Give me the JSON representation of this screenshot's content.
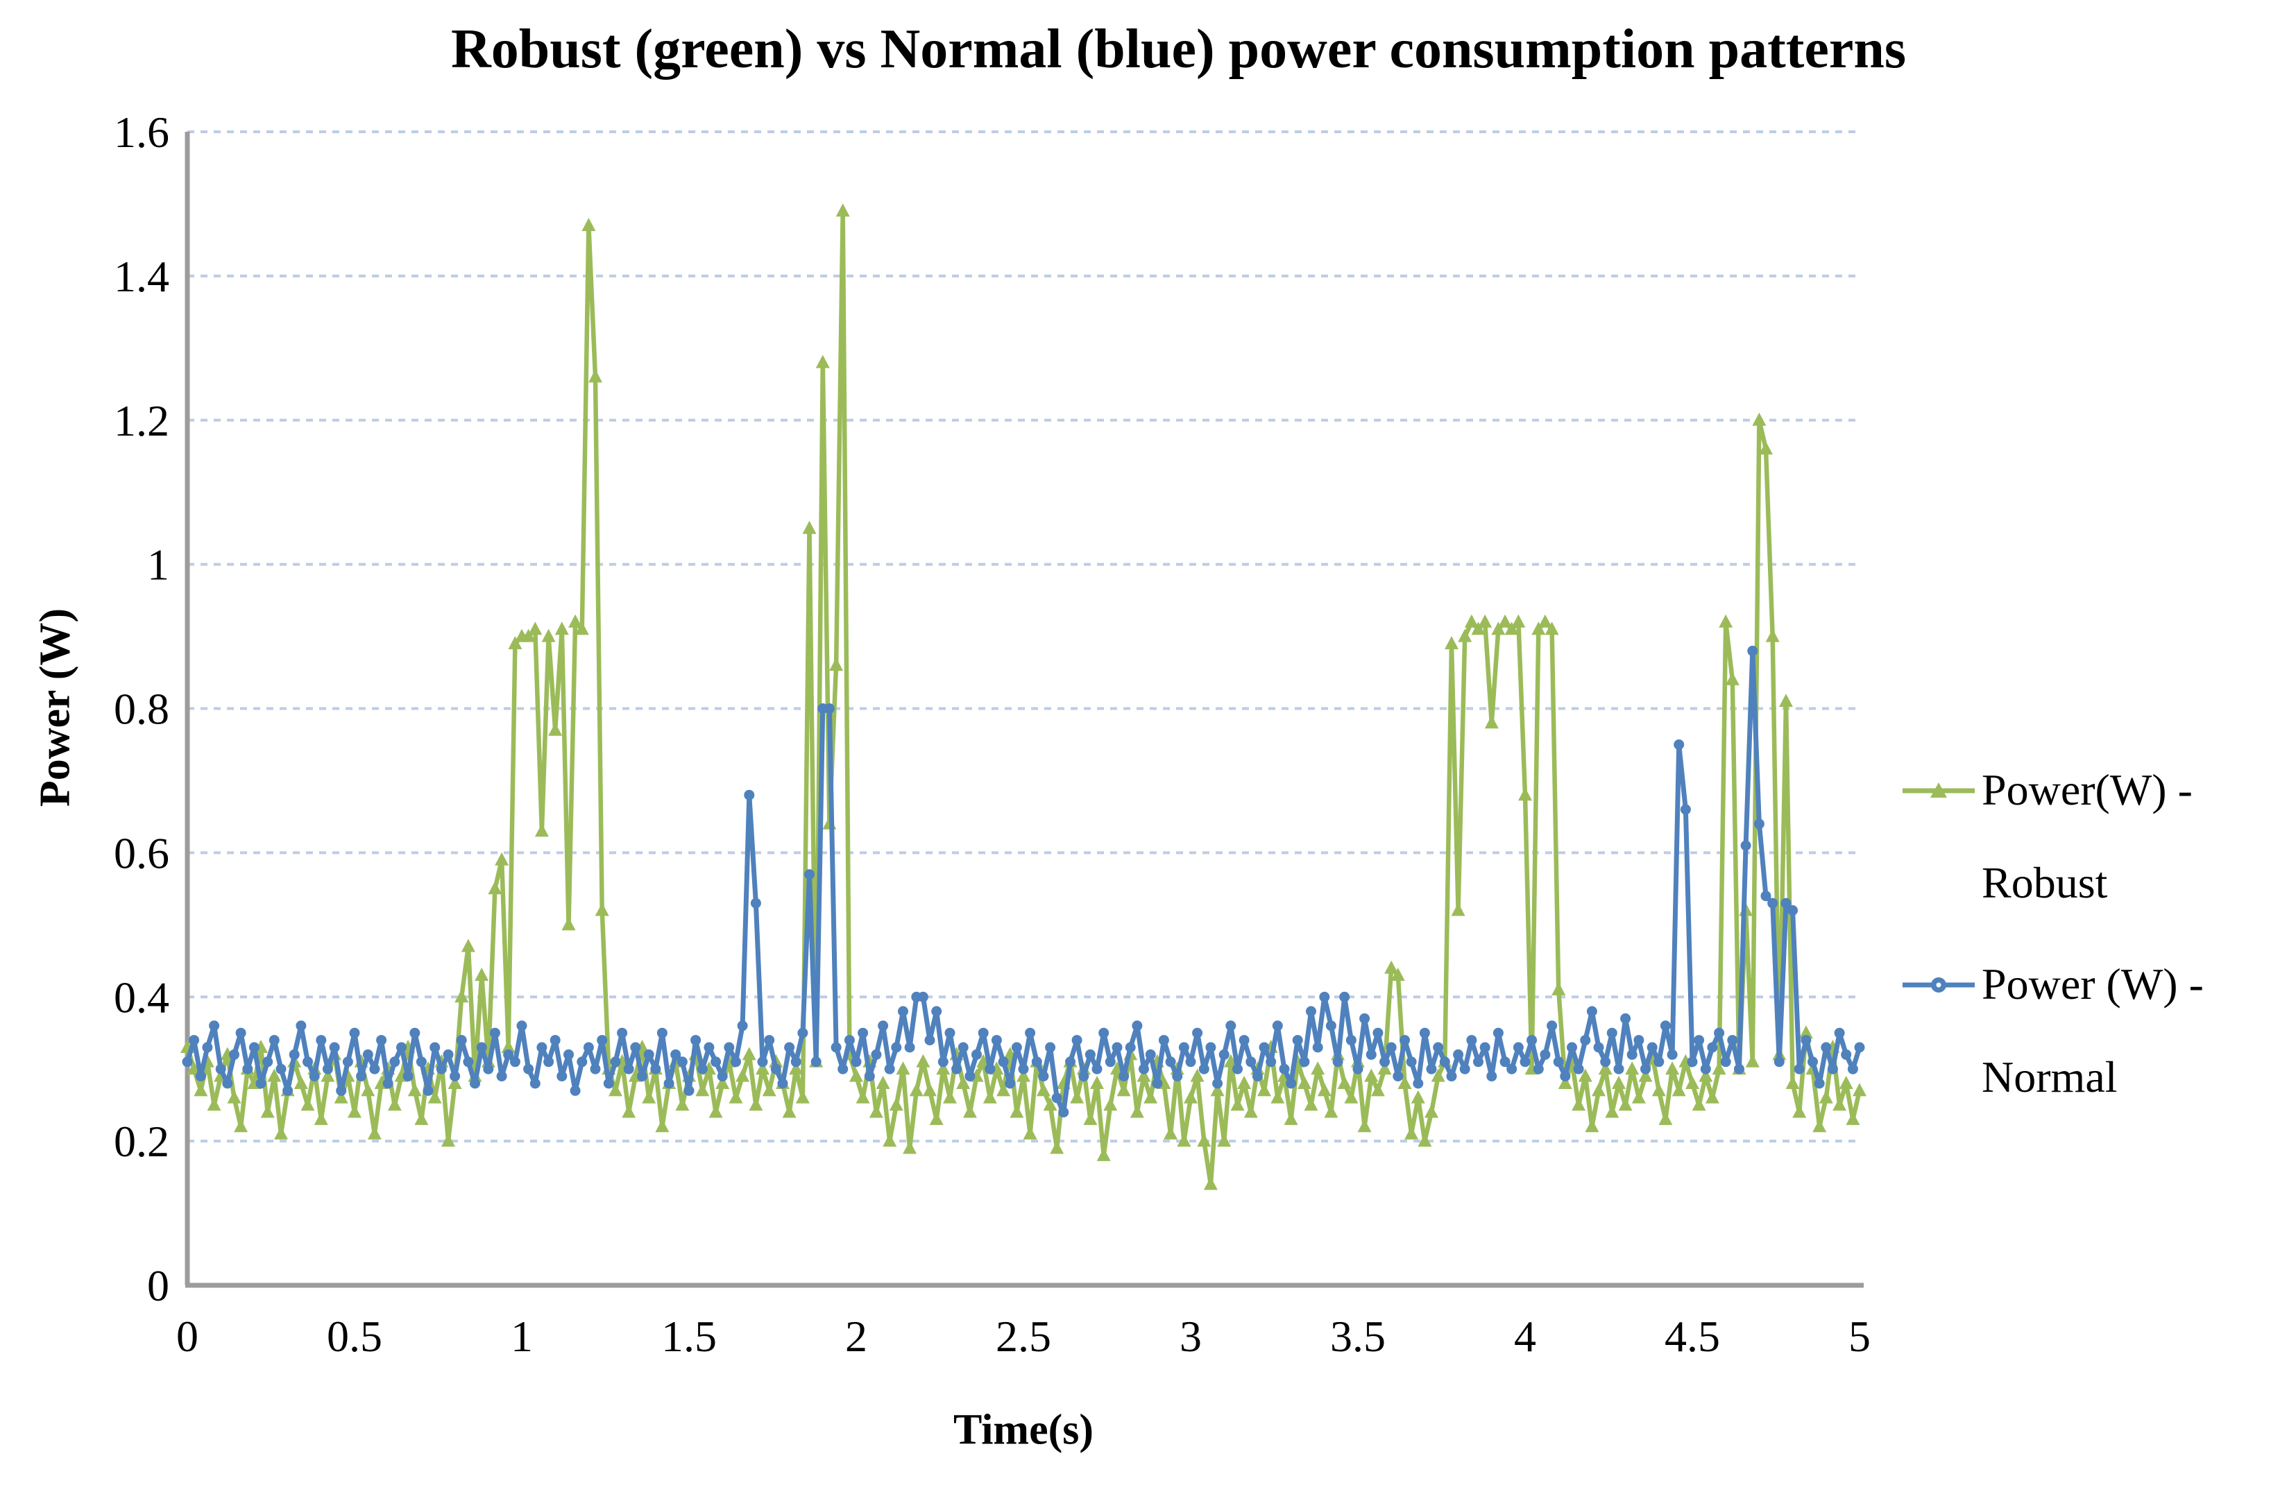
{
  "chart_data": {
    "type": "line",
    "title": "Robust (green) vs Normal (blue) power consumption patterns",
    "xlabel": "Time(s)",
    "ylabel": "Power (W)",
    "xlim": [
      0,
      5
    ],
    "ylim": [
      0,
      1.6
    ],
    "grid": "horizontal-dashed",
    "legend_position": "right",
    "x_ticks": {
      "values": [
        0,
        0.5,
        1,
        1.5,
        2,
        2.5,
        3,
        3.5,
        4,
        4.5,
        5
      ],
      "labels": [
        "0",
        "0.5",
        "1",
        "1.5",
        "2",
        "2.5",
        "3",
        "3.5",
        "4",
        "4.5",
        "5"
      ]
    },
    "y_ticks": {
      "values": [
        0,
        0.2,
        0.4,
        0.6,
        0.8,
        1,
        1.2,
        1.4,
        1.6
      ],
      "labels": [
        "0",
        "0.2",
        "0.4",
        "0.6",
        "0.8",
        "1",
        "1.2",
        "1.4",
        "1.6"
      ]
    },
    "sampling": {
      "x_start": 0,
      "dx": 0.02
    },
    "series": [
      {
        "name": "Power(W) - Robust",
        "color": "#9BBB59",
        "marker": "triangle",
        "values": [
          0.33,
          0.3,
          0.27,
          0.31,
          0.25,
          0.29,
          0.32,
          0.26,
          0.22,
          0.3,
          0.28,
          0.33,
          0.24,
          0.29,
          0.21,
          0.27,
          0.31,
          0.28,
          0.25,
          0.3,
          0.23,
          0.29,
          0.32,
          0.26,
          0.29,
          0.24,
          0.31,
          0.27,
          0.21,
          0.28,
          0.3,
          0.25,
          0.29,
          0.33,
          0.27,
          0.23,
          0.3,
          0.26,
          0.31,
          0.2,
          0.28,
          0.4,
          0.47,
          0.29,
          0.43,
          0.31,
          0.55,
          0.59,
          0.33,
          0.89,
          0.9,
          0.9,
          0.91,
          0.63,
          0.9,
          0.77,
          0.91,
          0.5,
          0.92,
          0.91,
          1.47,
          1.26,
          0.52,
          0.3,
          0.27,
          0.31,
          0.24,
          0.29,
          0.33,
          0.26,
          0.3,
          0.22,
          0.28,
          0.31,
          0.25,
          0.29,
          0.32,
          0.27,
          0.3,
          0.24,
          0.28,
          0.31,
          0.26,
          0.29,
          0.32,
          0.25,
          0.3,
          0.27,
          0.31,
          0.28,
          0.24,
          0.3,
          0.26,
          1.05,
          0.31,
          1.28,
          0.64,
          0.86,
          1.49,
          0.32,
          0.29,
          0.26,
          0.31,
          0.24,
          0.28,
          0.2,
          0.25,
          0.3,
          0.19,
          0.27,
          0.31,
          0.27,
          0.23,
          0.3,
          0.26,
          0.32,
          0.28,
          0.24,
          0.29,
          0.31,
          0.26,
          0.3,
          0.27,
          0.32,
          0.24,
          0.29,
          0.21,
          0.31,
          0.27,
          0.25,
          0.19,
          0.28,
          0.31,
          0.26,
          0.3,
          0.23,
          0.28,
          0.18,
          0.25,
          0.3,
          0.27,
          0.32,
          0.24,
          0.29,
          0.26,
          0.31,
          0.28,
          0.21,
          0.3,
          0.2,
          0.26,
          0.29,
          0.2,
          0.14,
          0.27,
          0.2,
          0.31,
          0.25,
          0.28,
          0.24,
          0.3,
          0.27,
          0.33,
          0.26,
          0.29,
          0.23,
          0.31,
          0.28,
          0.25,
          0.3,
          0.27,
          0.24,
          0.32,
          0.28,
          0.26,
          0.31,
          0.22,
          0.29,
          0.27,
          0.3,
          0.44,
          0.43,
          0.28,
          0.21,
          0.26,
          0.2,
          0.24,
          0.29,
          0.31,
          0.89,
          0.52,
          0.9,
          0.92,
          0.91,
          0.92,
          0.78,
          0.91,
          0.92,
          0.91,
          0.92,
          0.68,
          0.3,
          0.91,
          0.92,
          0.91,
          0.41,
          0.28,
          0.31,
          0.25,
          0.29,
          0.22,
          0.27,
          0.3,
          0.24,
          0.28,
          0.25,
          0.3,
          0.26,
          0.29,
          0.32,
          0.27,
          0.23,
          0.3,
          0.27,
          0.31,
          0.28,
          0.25,
          0.29,
          0.26,
          0.3,
          0.92,
          0.84,
          0.3,
          0.52,
          0.31,
          1.2,
          1.16,
          0.9,
          0.32,
          0.81,
          0.28,
          0.24,
          0.35,
          0.3,
          0.22,
          0.26,
          0.33,
          0.25,
          0.28,
          0.23,
          0.27
        ]
      },
      {
        "name": "Power (W) - Normal",
        "color": "#4F81BD",
        "marker": "circle",
        "values": [
          0.31,
          0.34,
          0.29,
          0.33,
          0.36,
          0.3,
          0.28,
          0.32,
          0.35,
          0.3,
          0.33,
          0.28,
          0.31,
          0.34,
          0.3,
          0.27,
          0.32,
          0.36,
          0.31,
          0.29,
          0.34,
          0.3,
          0.33,
          0.27,
          0.31,
          0.35,
          0.29,
          0.32,
          0.3,
          0.34,
          0.28,
          0.31,
          0.33,
          0.29,
          0.35,
          0.31,
          0.27,
          0.33,
          0.3,
          0.32,
          0.29,
          0.34,
          0.31,
          0.28,
          0.33,
          0.3,
          0.35,
          0.29,
          0.32,
          0.31,
          0.36,
          0.3,
          0.28,
          0.33,
          0.31,
          0.34,
          0.29,
          0.32,
          0.27,
          0.31,
          0.33,
          0.3,
          0.34,
          0.28,
          0.31,
          0.35,
          0.3,
          0.33,
          0.29,
          0.32,
          0.3,
          0.35,
          0.28,
          0.32,
          0.31,
          0.27,
          0.34,
          0.3,
          0.33,
          0.31,
          0.29,
          0.33,
          0.31,
          0.36,
          0.68,
          0.53,
          0.31,
          0.34,
          0.3,
          0.28,
          0.33,
          0.31,
          0.35,
          0.57,
          0.31,
          0.8,
          0.8,
          0.33,
          0.3,
          0.34,
          0.31,
          0.35,
          0.29,
          0.32,
          0.36,
          0.3,
          0.33,
          0.38,
          0.33,
          0.4,
          0.4,
          0.34,
          0.38,
          0.31,
          0.35,
          0.3,
          0.33,
          0.29,
          0.32,
          0.35,
          0.3,
          0.34,
          0.31,
          0.28,
          0.33,
          0.3,
          0.35,
          0.31,
          0.29,
          0.33,
          0.26,
          0.24,
          0.31,
          0.34,
          0.29,
          0.32,
          0.3,
          0.35,
          0.31,
          0.33,
          0.29,
          0.33,
          0.36,
          0.3,
          0.32,
          0.28,
          0.34,
          0.31,
          0.29,
          0.33,
          0.31,
          0.35,
          0.3,
          0.33,
          0.28,
          0.32,
          0.36,
          0.3,
          0.34,
          0.31,
          0.29,
          0.33,
          0.31,
          0.36,
          0.3,
          0.28,
          0.34,
          0.31,
          0.38,
          0.33,
          0.4,
          0.36,
          0.31,
          0.4,
          0.34,
          0.3,
          0.37,
          0.32,
          0.35,
          0.31,
          0.33,
          0.29,
          0.34,
          0.31,
          0.28,
          0.35,
          0.3,
          0.33,
          0.31,
          0.29,
          0.32,
          0.3,
          0.34,
          0.31,
          0.33,
          0.29,
          0.35,
          0.31,
          0.3,
          0.33,
          0.31,
          0.34,
          0.3,
          0.32,
          0.36,
          0.31,
          0.29,
          0.33,
          0.3,
          0.34,
          0.38,
          0.33,
          0.31,
          0.35,
          0.3,
          0.37,
          0.32,
          0.34,
          0.3,
          0.33,
          0.31,
          0.36,
          0.32,
          0.75,
          0.66,
          0.31,
          0.34,
          0.3,
          0.33,
          0.35,
          0.31,
          0.34,
          0.3,
          0.61,
          0.88,
          0.64,
          0.54,
          0.53,
          0.31,
          0.53,
          0.52,
          0.3,
          0.34,
          0.31,
          0.28,
          0.33,
          0.3,
          0.35,
          0.32,
          0.3,
          0.33
        ]
      }
    ]
  },
  "legend": {
    "items": [
      {
        "lines": [
          "Power(W) -",
          "Robust"
        ]
      },
      {
        "lines": [
          "Power (W) -",
          "Normal"
        ]
      }
    ]
  },
  "colors": {
    "robust_green": "#9BBB59",
    "normal_blue": "#4F81BD",
    "gridline": "#BCCDE4",
    "axis": "#9C9C9C",
    "text": "#000000",
    "background": "#FFFFFF"
  }
}
